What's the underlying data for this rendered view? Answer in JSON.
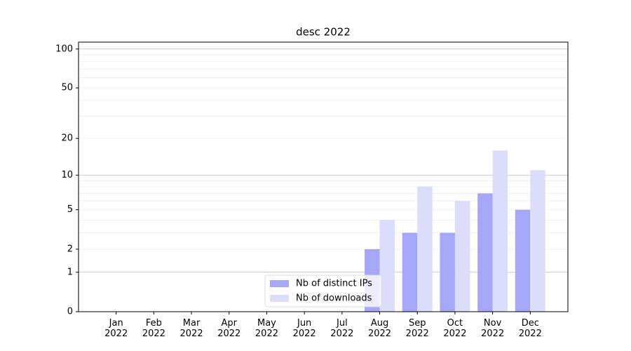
{
  "chart_data": {
    "type": "bar",
    "title": "desc 2022",
    "categories": [
      "Jan\n2022",
      "Feb\n2022",
      "Mar\n2022",
      "Apr\n2022",
      "May\n2022",
      "Jun\n2022",
      "Jul\n2022",
      "Aug\n2022",
      "Sep\n2022",
      "Oct\n2022",
      "Nov\n2022",
      "Dec\n2022"
    ],
    "series": [
      {
        "name": "Nb of distinct IPs",
        "color": "#a7a7f8",
        "values": [
          0,
          0,
          0,
          0,
          0,
          0,
          0,
          2,
          3,
          3,
          7,
          5
        ]
      },
      {
        "name": "Nb of downloads",
        "color": "#dcdcfb",
        "values": [
          0,
          0,
          0,
          0,
          0,
          0,
          0,
          4,
          8,
          6,
          16,
          11
        ]
      }
    ],
    "yscale": "log1p",
    "ylim": [
      0,
      113
    ],
    "yticks": [
      0,
      1,
      2,
      5,
      10,
      20,
      50,
      100
    ],
    "ygrid_strong": [
      1,
      10,
      100
    ],
    "ygrid_faint": [
      2,
      3,
      4,
      5,
      6,
      7,
      8,
      9,
      20,
      30,
      40,
      50,
      60,
      70,
      80,
      90
    ],
    "legend": "lower center"
  }
}
